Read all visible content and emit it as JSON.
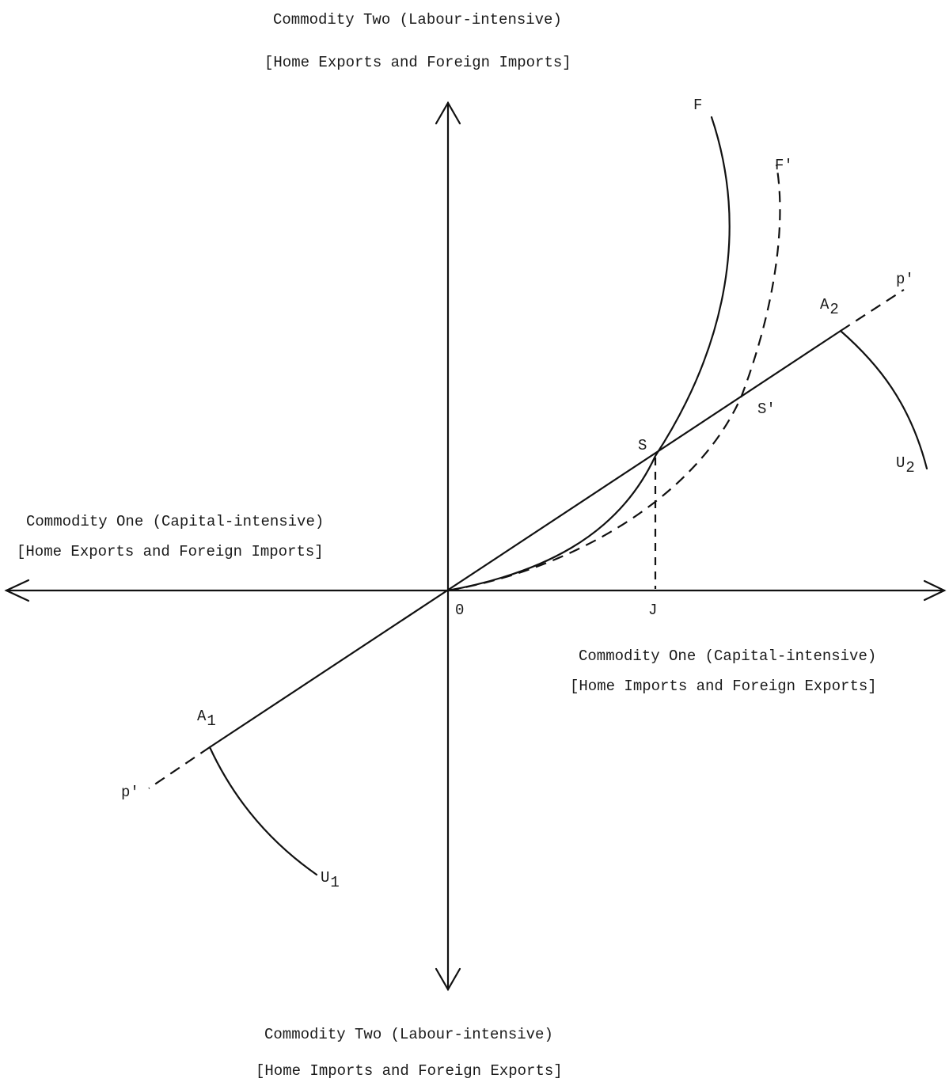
{
  "axes": {
    "top_label_line1": "Commodity Two (Labour-intensive)",
    "top_label_line2": "[Home Exports and Foreign Imports]",
    "left_label_line1": "Commodity One (Capital-intensive)",
    "left_label_line2": "[Home Exports and Foreign Imports]",
    "right_label_line1": "Commodity One (Capital-intensive)",
    "right_label_line2": "[Home Imports and Foreign Exports]",
    "bottom_label_line1": "Commodity Two (Labour-intensive)",
    "bottom_label_line2": "[Home Imports and Foreign Exports]"
  },
  "points": {
    "origin": "0",
    "j": "J",
    "s": "S",
    "s_prime": "S'",
    "f": "F",
    "f_prime": "F'",
    "p_prime_upper": "p'",
    "p_prime_lower": "p'",
    "a1_base": "A",
    "a1_sub": "1",
    "a2_base": "A",
    "a2_sub": "2",
    "u1_base": "U",
    "u1_sub": "1",
    "u2_base": "U",
    "u2_sub": "2"
  },
  "colors": {
    "ink": "#111111"
  }
}
